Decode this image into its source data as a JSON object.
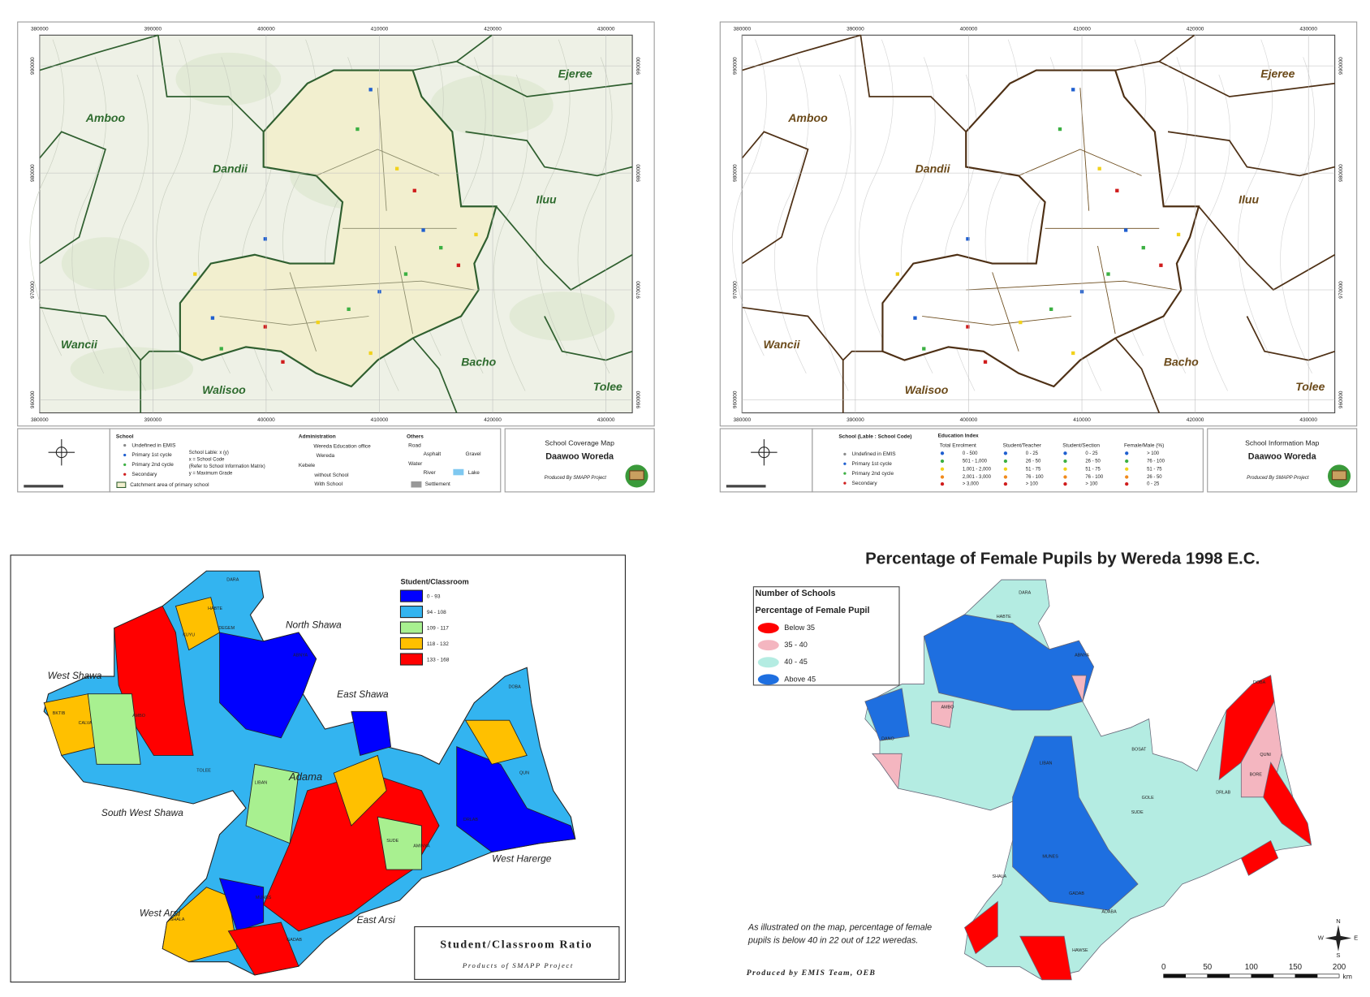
{
  "coverage_map": {
    "title": "School Coverage Map",
    "woreda": "Daawoo Woreda",
    "credit": "Produced By SMAPP Project",
    "x_ticks": [
      "380000",
      "390000",
      "400000",
      "410000",
      "420000",
      "430000"
    ],
    "y_ticks": [
      "990000",
      "980000",
      "970000",
      "960000"
    ],
    "regions": [
      "Amboo",
      "Ejeree",
      "Dandii",
      "Iluu",
      "Wancii",
      "Bacho",
      "Walisoo",
      "Tolee"
    ],
    "school": {
      "heading": "School",
      "items": [
        "Undefined in EMIS",
        "Primary 1st cycle",
        "Primary 2nd cycle",
        "Secondary"
      ],
      "catchment": "Catchment area of primary school",
      "label_key": [
        "School Lable: x (y)",
        "x = School Code",
        "(Refer to School Information Matrix)",
        "y = Maximum Grade"
      ]
    },
    "administration": {
      "heading": "Administration",
      "items": [
        "Wereda Education office",
        "Wereda",
        "Kebele",
        "without School",
        "With School"
      ]
    },
    "others": {
      "heading": "Others",
      "items": [
        "Road",
        "Asphalt",
        "Gravel",
        "Water",
        "River",
        "Lake",
        "Settlement"
      ]
    }
  },
  "information_map": {
    "title": "School Information Map",
    "woreda": "Daawoo Woreda",
    "credit": "Produced By SMAPP Project",
    "x_ticks": [
      "380000",
      "390000",
      "400000",
      "410000",
      "420000",
      "430000"
    ],
    "y_ticks": [
      "990000",
      "980000",
      "970000",
      "960000"
    ],
    "regions": [
      "Amboo",
      "Ejeree",
      "Dandii",
      "Iluu",
      "Wancii",
      "Bacho",
      "Walisoo",
      "Tolee"
    ],
    "school": {
      "heading": "School (Lable : School Code)",
      "items": [
        "Undefined in EMIS",
        "Primary 1st cycle",
        "Primary 2nd cycle",
        "Secondary"
      ]
    },
    "education_index": {
      "heading": "Education Index",
      "columns": [
        {
          "name": "Total Enrolment",
          "classes": [
            "0 - 500",
            "501 - 1,000",
            "1,001 - 2,000",
            "2,001 - 3,000",
            "> 3,000"
          ]
        },
        {
          "name": "Student/Teacher",
          "classes": [
            "0 - 25",
            "26 - 50",
            "51 - 75",
            "76 - 100",
            "> 100"
          ]
        },
        {
          "name": "Student/Section",
          "classes": [
            "0 - 25",
            "26 - 50",
            "51 - 75",
            "76 - 100",
            "> 100"
          ]
        },
        {
          "name": "Female/Male (%)",
          "classes": [
            "> 100",
            "76 - 100",
            "51 - 75",
            "26 - 50",
            "0 - 25"
          ]
        }
      ],
      "colors": [
        "#1f5fd0",
        "#3cb043",
        "#f2d21b",
        "#f08a1c",
        "#d01c1c"
      ]
    }
  },
  "classroom_map": {
    "title": "Student/Classroom Ratio",
    "credit": "Products of SMAPP Project",
    "legend_title": "Student/Classroom",
    "classes": [
      {
        "label": "0 - 93",
        "color": "#0000ff"
      },
      {
        "label": "94 - 108",
        "color": "#33b4f0"
      },
      {
        "label": "109 - 117",
        "color": "#a8f090"
      },
      {
        "label": "118 - 132",
        "color": "#ffc000"
      },
      {
        "label": "133 - 168",
        "color": "#ff0000"
      }
    ],
    "zones": [
      "North Shawa",
      "West Shawa",
      "East Shawa",
      "South West Shawa",
      "West Harerge",
      "West Arsi",
      "East Arsi",
      "Adama"
    ],
    "weredas": [
      "DARA",
      "HABTE",
      "KUYU",
      "DEGEM",
      "ABNYA",
      "BKTIB",
      "CALVA",
      "AMBO",
      "TOLEE",
      "LIBAN",
      "DRLAB",
      "DOBA",
      "QUN",
      "SUDE",
      "MUNES",
      "SHALA",
      "GADAB",
      "AMINYA"
    ]
  },
  "female_map": {
    "title": "Percentage of Female Pupils by Wereda 1998 E.C.",
    "legend_headings": [
      "Number of Schools",
      "Percentage of Female Pupil"
    ],
    "classes": [
      {
        "label": "Below 35",
        "color": "#ff0000"
      },
      {
        "label": "35 - 40",
        "color": "#f4b6c0"
      },
      {
        "label": "40 - 45",
        "color": "#b4ece2"
      },
      {
        "label": "Above 45",
        "color": "#1e6fe0"
      }
    ],
    "note": [
      "As illustrated on the map, percentage of female",
      "pupils is below 40 in 22 out of 122 weredas."
    ],
    "credit": "Produced by EMIS Team, OEB",
    "compass": [
      "N",
      "W",
      "E",
      "S"
    ],
    "scale_ticks": [
      "0",
      "50",
      "100",
      "150",
      "200"
    ],
    "scale_unit": "km",
    "weredas": [
      "DARA",
      "HABTE",
      "AMBO",
      "DANO",
      "LIBAN",
      "BOSAT",
      "DRLAB",
      "DOBA",
      "QUNI",
      "BORE",
      "SUDE",
      "MUNES",
      "SHALA",
      "GADAB",
      "ADABA",
      "HAWSE",
      "ABNYA",
      "GOLE"
    ]
  }
}
